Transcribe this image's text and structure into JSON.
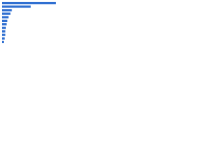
{
  "chart_data": {
    "type": "hbar",
    "categories": [
      null,
      null,
      null,
      null,
      null,
      null,
      null,
      null,
      null,
      null,
      null,
      null
    ],
    "values": [
      83,
      44,
      15,
      13,
      10,
      8,
      7,
      6,
      5,
      5,
      4,
      3
    ],
    "color": "#2f6fd1",
    "xlim": [
      0,
      100
    ]
  }
}
